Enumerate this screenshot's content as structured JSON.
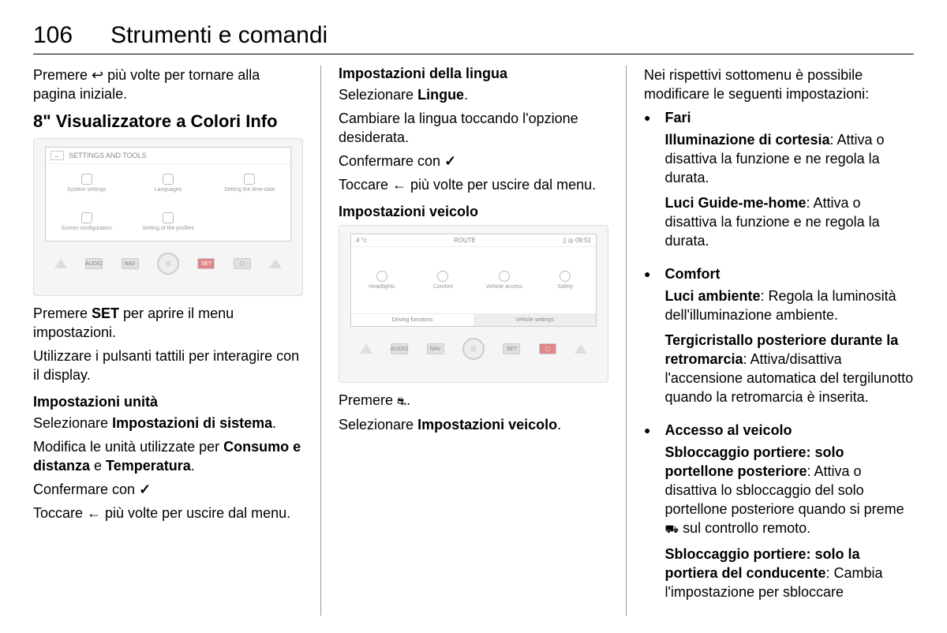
{
  "header": {
    "page": "106",
    "title": "Strumenti e comandi"
  },
  "col1": {
    "p1a": "Premere ",
    "p1_icon": "↩",
    "p1b": " più volte per tornare alla pagina iniziale.",
    "h2": "8\" Visualizzatore a Colori Info",
    "screen_title": "SETTINGS AND TOOLS",
    "icons": [
      "System settings",
      "Languages",
      "Setting the time-date",
      "Screen configuration",
      "Setting of the profiles",
      ""
    ],
    "p2a": "Premere ",
    "p2b": "SET",
    "p2c": " per aprire il menu impostazioni.",
    "p3": "Utilizzare i pulsanti tattili per interagire con il display.",
    "h3a": "Impostazioni unità",
    "p4a": "Selezionare ",
    "p4b": "Impostazioni di sistema",
    "p4c": ".",
    "p5a": "Modifica le unità utilizzate per ",
    "p5b": "Consumo e distanza",
    "p5c": " e ",
    "p5d": "Temperatura",
    "p5e": ".",
    "p6a": "Confermare con ",
    "p6_icon": "✓",
    "p7a": "Toccare ",
    "p7_icon": "←",
    "p7b": " più volte per uscire dal menu."
  },
  "col2": {
    "h3a": "Impostazioni della lingua",
    "p1a": "Selezionare ",
    "p1b": "Lingue",
    "p1c": ".",
    "p2": "Cambiare la lingua toccando l'opzione desiderata.",
    "p3a": "Confermare con ",
    "p3_icon": "✓",
    "p4a": "Toccare ",
    "p4_icon": "←",
    "p4b": " più volte per uscire dal menu.",
    "h3b": "Impostazioni veicolo",
    "s2_temp": "4 °c",
    "s2_route": "ROUTE",
    "s2_time": "09:51",
    "s2_cells": [
      "Headlights",
      "Comfort",
      "Vehicle access",
      "Safety"
    ],
    "s2_tab1": "Driving functions",
    "s2_tab2": "Vehicle settings",
    "p5a": "Premere ",
    "p5_icon": "⛐",
    "p5b": ".",
    "p6a": "Selezionare ",
    "p6b": "Impostazioni veicolo",
    "p6c": "."
  },
  "col3": {
    "intro": "Nei rispettivi sottomenu è possibile modificare le seguenti impostazioni:",
    "b1_title": "Fari",
    "b1_s1a": "Illuminazione di cortesia",
    "b1_s1b": ": Attiva o disattiva la funzione e ne regola la durata.",
    "b1_s2a": "Luci Guide-me-home",
    "b1_s2b": ": Attiva o disattiva la funzione e ne regola la durata.",
    "b2_title": "Comfort",
    "b2_s1a": "Luci ambiente",
    "b2_s1b": ": Regola la luminosità dell'illuminazione ambiente.",
    "b2_s2a": "Tergicristallo posteriore durante la retromarcia",
    "b2_s2b": ": Attiva/disattiva l'accensione automatica del tergilunotto quando la retromarcia è inserita.",
    "b3_title": "Accesso al veicolo",
    "b3_s1a": "Sbloccaggio portiere: solo portellone posteriore",
    "b3_s1b": ": Attiva o disattiva lo sbloccaggio del solo portellone posteriore quando si preme ",
    "b3_s1_icon": "⛟",
    "b3_s1c": " sul controllo remoto.",
    "b3_s2a": "Sbloccaggio portiere: solo la portiera del conducente",
    "b3_s2b": ": Cambia l'impostazione per sbloccare"
  }
}
